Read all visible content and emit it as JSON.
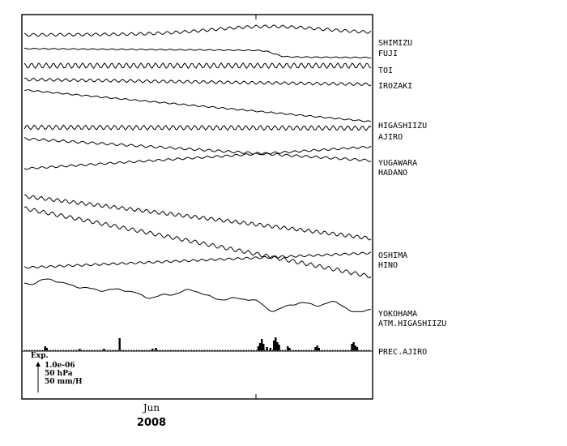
{
  "chart_data": {
    "type": "line",
    "title": "",
    "xlabel": "",
    "ylabel": "",
    "x_axis": {
      "month_label": "Jun",
      "year_label": "2008",
      "range": [
        "2008-05-01",
        "2008-06-30"
      ],
      "major_ticks": [
        "2008-06-01"
      ]
    },
    "grid": false,
    "scale_legend": {
      "heading": "Exp.",
      "values": [
        "1.0e-06",
        "50 hPa",
        "50 mm/H"
      ]
    },
    "series": [
      {
        "name": "SHIMIZU",
        "start": 0.0,
        "end": -2.0,
        "bump": 9,
        "bump_center": 0.7,
        "bump_width": 0.22,
        "wave_amp": 1.8,
        "wave_period": 11,
        "color": "#000000"
      },
      {
        "name": "FUJI",
        "start": 0.0,
        "end": 3.0,
        "step": 8,
        "step_at": 0.72,
        "wave_amp": 0.6,
        "wave_period": 12,
        "color": "#000000"
      },
      {
        "name": "TOI",
        "start": 0.0,
        "end": 0.0,
        "wave_amp": 3.2,
        "wave_period": 9,
        "color": "#000000"
      },
      {
        "name": "IROZAKI",
        "start": 0.0,
        "end": 6.0,
        "wave_amp": 1.8,
        "wave_period": 10,
        "color": "#000000"
      },
      {
        "name": "HIGASHIIZU",
        "start": 0.0,
        "end": 39.0,
        "wave_amp": 0.8,
        "wave_period": 12,
        "color": "#000000"
      },
      {
        "name": "AJIRO",
        "start": 0.0,
        "end": 1.0,
        "wave_amp": 2.8,
        "wave_period": 9,
        "color": "#000000"
      },
      {
        "name": "YUGAWARA",
        "start": 0.0,
        "end": 27.0,
        "wave_amp": 1.4,
        "wave_period": 12,
        "color": "#000000"
      },
      {
        "name": "HADANO",
        "start": 0.0,
        "end": -27.0,
        "wave_amp": 1.2,
        "wave_period": 12,
        "color": "#000000"
      },
      {
        "name": "OSHIMA",
        "start": 0.0,
        "end": 52.0,
        "wave_amp": 2.2,
        "wave_period": 10,
        "color": "#000000"
      },
      {
        "name": "HINO",
        "start": 0.0,
        "end": 84.0,
        "wave_amp": 2.4,
        "wave_period": 11,
        "color": "#000000"
      },
      {
        "name": "YOKOHAMA",
        "start": 0.0,
        "end": -18.0,
        "wave_amp": 1.3,
        "wave_period": 11,
        "color": "#000000"
      },
      {
        "name": "ATM.HIGASHIIZU",
        "start": 0.0,
        "end": 33.0,
        "wave_amp": 0.4,
        "wave_period": 14,
        "color": "#000000"
      },
      {
        "name": "PREC.AJIRO",
        "start": 0.0,
        "end": 0.0,
        "wave_amp": 0,
        "wave_period": 1,
        "color": "#000000"
      }
    ],
    "atm_pressure_features": [
      {
        "center": 0.07,
        "depth": -8,
        "width": 0.035
      },
      {
        "center": 0.35,
        "depth": 5,
        "width": 0.04
      },
      {
        "center": 0.49,
        "depth": -6,
        "width": 0.04
      },
      {
        "center": 0.72,
        "depth": 9,
        "width": 0.035
      },
      {
        "center": 0.9,
        "depth": -8,
        "width": 0.035
      },
      {
        "center": 0.95,
        "depth": 7,
        "width": 0.03
      }
    ],
    "precipitation": [
      {
        "t": 0.06,
        "v": 5
      },
      {
        "t": 0.065,
        "v": 3
      },
      {
        "t": 0.16,
        "v": 2
      },
      {
        "t": 0.23,
        "v": 2
      },
      {
        "t": 0.275,
        "v": 15
      },
      {
        "t": 0.37,
        "v": 2
      },
      {
        "t": 0.38,
        "v": 3
      },
      {
        "t": 0.675,
        "v": 5
      },
      {
        "t": 0.68,
        "v": 9
      },
      {
        "t": 0.685,
        "v": 14
      },
      {
        "t": 0.69,
        "v": 8
      },
      {
        "t": 0.7,
        "v": 4
      },
      {
        "t": 0.71,
        "v": 3
      },
      {
        "t": 0.72,
        "v": 12
      },
      {
        "t": 0.725,
        "v": 16
      },
      {
        "t": 0.73,
        "v": 10
      },
      {
        "t": 0.735,
        "v": 7
      },
      {
        "t": 0.76,
        "v": 5
      },
      {
        "t": 0.765,
        "v": 3
      },
      {
        "t": 0.84,
        "v": 4
      },
      {
        "t": 0.845,
        "v": 6
      },
      {
        "t": 0.85,
        "v": 3
      },
      {
        "t": 0.945,
        "v": 8
      },
      {
        "t": 0.95,
        "v": 10
      },
      {
        "t": 0.955,
        "v": 6
      },
      {
        "t": 0.96,
        "v": 4
      }
    ]
  }
}
